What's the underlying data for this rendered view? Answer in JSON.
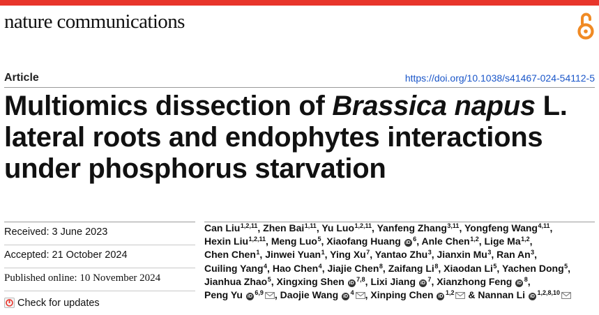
{
  "journal": {
    "name": "nature communications"
  },
  "header": {
    "article_type": "Article",
    "doi": "https://doi.org/10.1038/s41467-024-54112-5",
    "open_access_icon": "open-access-lock-icon"
  },
  "title": {
    "line1_before": "Multiomics dissection of ",
    "line1_species": "Brassica napus",
    "line1_after": " L.",
    "line2": "lateral roots and endophytes interactions",
    "line3": "under phosphorus starvation"
  },
  "dates": {
    "received": "Received: 3 June 2023",
    "accepted": "Accepted: 21 October 2024",
    "published": "Published online: 10 November 2024",
    "check_updates": "Check for updates"
  },
  "authors": [
    {
      "name": "Can Liu",
      "aff": "1,2,11"
    },
    {
      "name": "Zhen Bai",
      "aff": "1,11"
    },
    {
      "name": "Yu Luo",
      "aff": "1,2,11"
    },
    {
      "name": "Yanfeng Zhang",
      "aff": "3,11"
    },
    {
      "name": "Yongfeng Wang",
      "aff": "4,11"
    },
    {
      "name": "Hexin Liu",
      "aff": "1,2,11"
    },
    {
      "name": "Meng Luo",
      "aff": "5"
    },
    {
      "name": "Xiaofang Huang",
      "aff": "6",
      "orcid": true
    },
    {
      "name": "Anle Chen",
      "aff": "1,2"
    },
    {
      "name": "Lige Ma",
      "aff": "1,2"
    },
    {
      "name": "Chen Chen",
      "aff": "1"
    },
    {
      "name": "Jinwei Yuan",
      "aff": "1"
    },
    {
      "name": "Ying Xu",
      "aff": "7"
    },
    {
      "name": "Yantao Zhu",
      "aff": "3"
    },
    {
      "name": "Jianxin Mu",
      "aff": "3"
    },
    {
      "name": "Ran An",
      "aff": "3"
    },
    {
      "name": "Cuiling Yang",
      "aff": "4"
    },
    {
      "name": "Hao Chen",
      "aff": "4"
    },
    {
      "name": "Jiajie Chen",
      "aff": "8"
    },
    {
      "name": "Zaifang Li",
      "aff": "8"
    },
    {
      "name": "Xiaodan Li",
      "aff": "5"
    },
    {
      "name": "Yachen Dong",
      "aff": "5"
    },
    {
      "name": "Jianhua Zhao",
      "aff": "5"
    },
    {
      "name": "Xingxing Shen",
      "aff": "7,8",
      "orcid": true
    },
    {
      "name": "Lixi Jiang",
      "aff": "7",
      "orcid": true
    },
    {
      "name": "Xianzhong Feng",
      "aff": "8",
      "orcid": true
    },
    {
      "name": "Peng Yu",
      "aff": "6,9",
      "orcid": true,
      "corresponding": true
    },
    {
      "name": "Daojie Wang",
      "aff": "4",
      "orcid": true,
      "corresponding": true
    },
    {
      "name": "Xinping Chen",
      "aff": "1,2",
      "orcid": true,
      "corresponding": true
    },
    {
      "name": "Nannan Li",
      "aff": "1,2,8,10",
      "orcid": true,
      "corresponding": true
    }
  ],
  "authors_final_conjunction": "&",
  "colors": {
    "brand_red": "#e8352b",
    "doi_link": "#1a56c9",
    "oa_orange": "#f08a24"
  }
}
